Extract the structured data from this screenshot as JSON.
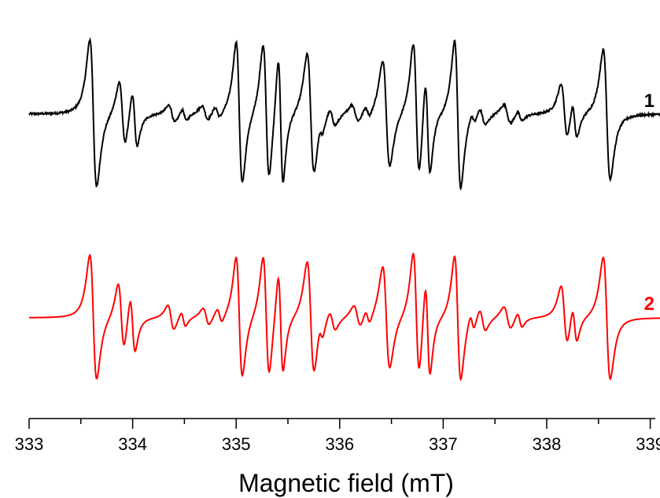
{
  "chart_data": {
    "type": "line",
    "xlabel": "Magnetic field (mT)",
    "ylabel": "",
    "xlim": [
      333,
      339.15
    ],
    "xticks": [
      "333",
      "334",
      "335",
      "336",
      "337",
      "338",
      "339"
    ],
    "grid": false,
    "series": [
      {
        "name": "1",
        "color": "#000000",
        "noise": true,
        "peaks": [
          {
            "x": 333.62,
            "a": 1.0,
            "w": 0.033
          },
          {
            "x": 333.9,
            "a": 0.44,
            "w": 0.03
          },
          {
            "x": 334.02,
            "a": 0.38,
            "w": 0.025
          },
          {
            "x": 334.38,
            "a": 0.12,
            "w": 0.03
          },
          {
            "x": 334.5,
            "a": 0.08,
            "w": 0.022
          },
          {
            "x": 334.7,
            "a": 0.1,
            "w": 0.03
          },
          {
            "x": 334.82,
            "a": 0.08,
            "w": 0.025
          },
          {
            "x": 335.03,
            "a": 0.96,
            "w": 0.03
          },
          {
            "x": 335.29,
            "a": 0.92,
            "w": 0.03
          },
          {
            "x": 335.43,
            "a": 0.86,
            "w": 0.024
          },
          {
            "x": 335.72,
            "a": 0.82,
            "w": 0.034
          },
          {
            "x": 335.82,
            "a": 0.1,
            "w": 0.022
          },
          {
            "x": 335.93,
            "a": 0.12,
            "w": 0.03
          },
          {
            "x": 336.15,
            "a": 0.12,
            "w": 0.034
          },
          {
            "x": 336.27,
            "a": 0.08,
            "w": 0.024
          },
          {
            "x": 336.45,
            "a": 0.72,
            "w": 0.034
          },
          {
            "x": 336.74,
            "a": 0.92,
            "w": 0.03
          },
          {
            "x": 336.85,
            "a": 0.68,
            "w": 0.024
          },
          {
            "x": 337.14,
            "a": 1.0,
            "w": 0.03
          },
          {
            "x": 337.29,
            "a": 0.08,
            "w": 0.022
          },
          {
            "x": 337.38,
            "a": 0.12,
            "w": 0.03
          },
          {
            "x": 337.62,
            "a": 0.13,
            "w": 0.034
          },
          {
            "x": 337.74,
            "a": 0.07,
            "w": 0.024
          },
          {
            "x": 338.17,
            "a": 0.38,
            "w": 0.032
          },
          {
            "x": 338.27,
            "a": 0.26,
            "w": 0.024
          },
          {
            "x": 338.58,
            "a": 0.88,
            "w": 0.034
          }
        ]
      },
      {
        "name": "2",
        "color": "#ff0000",
        "noise": false,
        "peaks": [
          {
            "x": 333.62,
            "a": 1.0,
            "w": 0.033
          },
          {
            "x": 333.89,
            "a": 0.54,
            "w": 0.03
          },
          {
            "x": 334.0,
            "a": 0.46,
            "w": 0.025
          },
          {
            "x": 334.37,
            "a": 0.2,
            "w": 0.03
          },
          {
            "x": 334.49,
            "a": 0.12,
            "w": 0.022
          },
          {
            "x": 334.71,
            "a": 0.14,
            "w": 0.03
          },
          {
            "x": 334.84,
            "a": 0.12,
            "w": 0.025
          },
          {
            "x": 335.03,
            "a": 0.96,
            "w": 0.03
          },
          {
            "x": 335.29,
            "a": 0.96,
            "w": 0.03
          },
          {
            "x": 335.43,
            "a": 0.8,
            "w": 0.024
          },
          {
            "x": 335.72,
            "a": 0.9,
            "w": 0.034
          },
          {
            "x": 335.82,
            "a": 0.14,
            "w": 0.022
          },
          {
            "x": 335.93,
            "a": 0.16,
            "w": 0.03
          },
          {
            "x": 336.17,
            "a": 0.18,
            "w": 0.034
          },
          {
            "x": 336.27,
            "a": 0.12,
            "w": 0.024
          },
          {
            "x": 336.45,
            "a": 0.82,
            "w": 0.034
          },
          {
            "x": 336.74,
            "a": 1.0,
            "w": 0.03
          },
          {
            "x": 336.85,
            "a": 0.78,
            "w": 0.024
          },
          {
            "x": 337.14,
            "a": 1.0,
            "w": 0.03
          },
          {
            "x": 337.28,
            "a": 0.14,
            "w": 0.022
          },
          {
            "x": 337.38,
            "a": 0.18,
            "w": 0.03
          },
          {
            "x": 337.62,
            "a": 0.18,
            "w": 0.034
          },
          {
            "x": 337.74,
            "a": 0.12,
            "w": 0.024
          },
          {
            "x": 338.17,
            "a": 0.48,
            "w": 0.032
          },
          {
            "x": 338.27,
            "a": 0.3,
            "w": 0.024
          },
          {
            "x": 338.58,
            "a": 0.98,
            "w": 0.034
          }
        ]
      }
    ]
  }
}
